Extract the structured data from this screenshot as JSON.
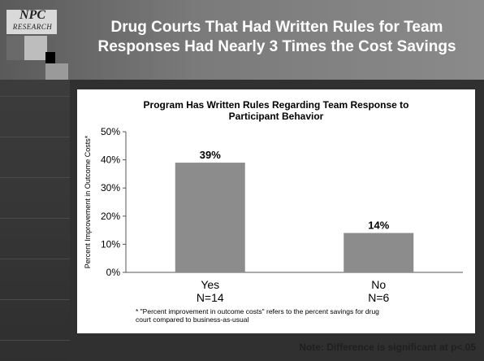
{
  "logo": {
    "text_big": "NPC",
    "text_small": "RESEARCH"
  },
  "slide": {
    "title_line1": "Drug Courts That Had Written Rules for Team",
    "title_line2": "Responses Had Nearly 3 Times the Cost Savings",
    "note": "Note: Difference is significant at p<.05"
  },
  "chart_data": {
    "type": "bar",
    "title_line1": "Program Has Written Rules Regarding Team Response to",
    "title_line2": "Participant Behavior",
    "ylabel": "Percent Improvement in Outcome Costs*",
    "ylim": [
      0,
      50
    ],
    "yticks": [
      "0%",
      "10%",
      "20%",
      "30%",
      "40%",
      "50%"
    ],
    "categories": [
      "Yes",
      "No"
    ],
    "category_sublabels": [
      "N=14",
      "N=6"
    ],
    "values": [
      39,
      14
    ],
    "data_labels": [
      "39%",
      "14%"
    ],
    "bar_color": "#8c8c8c",
    "footnote_line1": "* \"Percent improvement in outcome costs\" refers to the percent savings for drug",
    "footnote_line2": "court compared to business-as-usual"
  }
}
